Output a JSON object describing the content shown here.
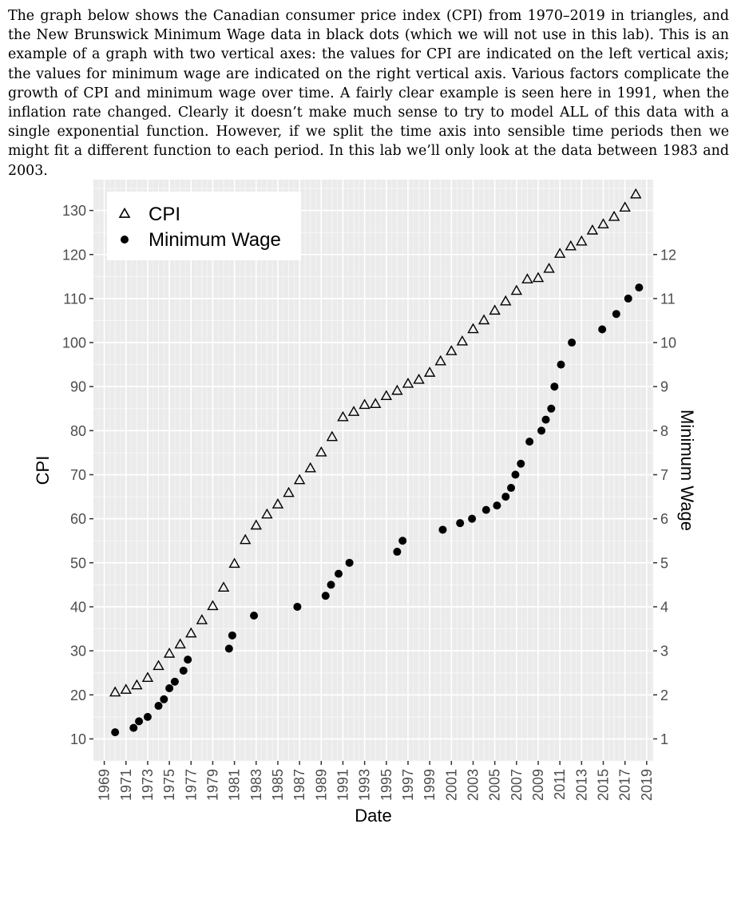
{
  "intro_text": "The graph below shows the Canadian consumer price index (CPI) from 1970–2019 in triangles, and the New Brunswick Minimum Wage data in black dots (which we will not use in this lab). This is an example of a graph with two vertical axes: the values for CPI are indicated on the left vertical axis; the values for minimum wage are indicated on the right vertical axis. Various factors complicate the growth of CPI and minimum wage over time. A fairly clear example is seen here in 1991, when the inflation rate changed. Clearly it doesn’t make much sense to try to model ALL of this data with a single exponential function. However, if we split the time axis into sensible time periods then we might fit a different function to each period. In this lab we’ll only look at the data between 1983 and 2003.",
  "chart_data": {
    "type": "scatter",
    "xlabel": "Date",
    "ylabel": "CPI",
    "y2label": "Minimum Wage",
    "xlim": [
      1968.0,
      2019.6
    ],
    "ylim": [
      5,
      137
    ],
    "y2lim": [
      0.5,
      13.7
    ],
    "x_ticks": [
      "1969",
      "1971",
      "1973",
      "1975",
      "1977",
      "1979",
      "1981",
      "1983",
      "1985",
      "1987",
      "1989",
      "1991",
      "1993",
      "1995",
      "1997",
      "1999",
      "2001",
      "2003",
      "2005",
      "2007",
      "2009",
      "2011",
      "2013",
      "2015",
      "2017",
      "2019"
    ],
    "y_ticks": [
      10,
      20,
      30,
      40,
      50,
      60,
      70,
      80,
      90,
      100,
      110,
      120,
      130
    ],
    "y2_ticks": [
      1,
      2,
      3,
      4,
      5,
      6,
      7,
      8,
      9,
      10,
      11,
      12
    ],
    "grid": true,
    "legend_position": "top-left",
    "series": [
      {
        "name": "CPI",
        "marker": "open-triangle",
        "axis": "left",
        "points": [
          [
            1970,
            20.5
          ],
          [
            1971,
            21.1
          ],
          [
            1972,
            22.1
          ],
          [
            1973,
            23.8
          ],
          [
            1974,
            26.5
          ],
          [
            1975,
            29.3
          ],
          [
            1976,
            31.4
          ],
          [
            1977,
            33.9
          ],
          [
            1978,
            36.9
          ],
          [
            1979,
            40.1
          ],
          [
            1980,
            44.3
          ],
          [
            1981,
            49.7
          ],
          [
            1982,
            55.1
          ],
          [
            1983,
            58.4
          ],
          [
            1984,
            60.9
          ],
          [
            1985,
            63.2
          ],
          [
            1986,
            65.8
          ],
          [
            1987,
            68.7
          ],
          [
            1988,
            71.4
          ],
          [
            1989,
            75.0
          ],
          [
            1990,
            78.5
          ],
          [
            1991,
            83.0
          ],
          [
            1992,
            84.2
          ],
          [
            1993,
            85.8
          ],
          [
            1994,
            86.0
          ],
          [
            1995,
            87.8
          ],
          [
            1996,
            89.0
          ],
          [
            1997,
            90.6
          ],
          [
            1998,
            91.5
          ],
          [
            1999,
            93.1
          ],
          [
            2000,
            95.7
          ],
          [
            2001,
            98.0
          ],
          [
            2002,
            100.2
          ],
          [
            2003,
            103.0
          ],
          [
            2004,
            105.0
          ],
          [
            2005,
            107.2
          ],
          [
            2006,
            109.3
          ],
          [
            2007,
            111.7
          ],
          [
            2008,
            114.3
          ],
          [
            2009,
            114.6
          ],
          [
            2010,
            116.7
          ],
          [
            2011,
            120.1
          ],
          [
            2012,
            121.8
          ],
          [
            2013,
            122.9
          ],
          [
            2014,
            125.4
          ],
          [
            2015,
            126.8
          ],
          [
            2016,
            128.5
          ],
          [
            2017,
            130.6
          ],
          [
            2018,
            133.6
          ]
        ]
      },
      {
        "name": "Minimum Wage",
        "marker": "filled-circle",
        "axis": "right",
        "points": [
          [
            1970.0,
            1.15
          ],
          [
            1971.7,
            1.25
          ],
          [
            1972.2,
            1.4
          ],
          [
            1973.0,
            1.5
          ],
          [
            1974.0,
            1.75
          ],
          [
            1974.5,
            1.9
          ],
          [
            1975.0,
            2.15
          ],
          [
            1975.5,
            2.3
          ],
          [
            1976.3,
            2.55
          ],
          [
            1976.7,
            2.8
          ],
          [
            1980.5,
            3.05
          ],
          [
            1980.8,
            3.35
          ],
          [
            1982.8,
            3.8
          ],
          [
            1986.8,
            4.0
          ],
          [
            1989.4,
            4.25
          ],
          [
            1989.9,
            4.5
          ],
          [
            1990.6,
            4.75
          ],
          [
            1991.6,
            5.0
          ],
          [
            1996.0,
            5.25
          ],
          [
            1996.5,
            5.5
          ],
          [
            2000.2,
            5.75
          ],
          [
            2001.8,
            5.9
          ],
          [
            2002.9,
            6.0
          ],
          [
            2004.2,
            6.2
          ],
          [
            2005.2,
            6.3
          ],
          [
            2006.0,
            6.5
          ],
          [
            2006.5,
            6.7
          ],
          [
            2006.9,
            7.0
          ],
          [
            2007.4,
            7.25
          ],
          [
            2008.2,
            7.75
          ],
          [
            2009.3,
            8.0
          ],
          [
            2009.7,
            8.25
          ],
          [
            2010.2,
            8.5
          ],
          [
            2010.5,
            9.0
          ],
          [
            2011.1,
            9.5
          ],
          [
            2012.1,
            10.0
          ],
          [
            2014.9,
            10.3
          ],
          [
            2016.2,
            10.65
          ],
          [
            2017.3,
            11.0
          ],
          [
            2018.3,
            11.25
          ]
        ]
      }
    ]
  }
}
